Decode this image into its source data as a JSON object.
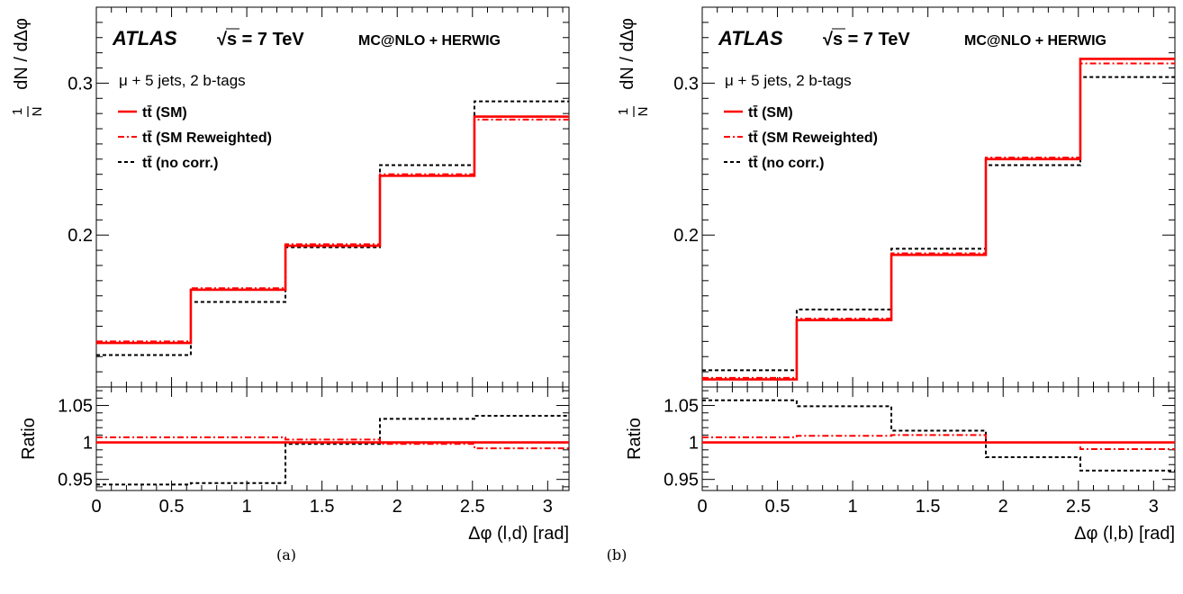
{
  "chart_data": [
    {
      "type": "step",
      "caption": "(a)",
      "experiment": "ATLAS",
      "energy": "√s = 7 TeV",
      "generator": "MC@NLO + HERWIG",
      "selection": "μ + 5 jets, 2 b-tags",
      "ylabel_num": "1",
      "ylabel_den": "N",
      "ylabel": "dN / dΔφ",
      "xlabel": "Δφ (l,d) [rad]",
      "ratio_ylabel": "Ratio",
      "xlim": [
        0,
        3.1416
      ],
      "ylim": [
        0.1,
        0.35
      ],
      "ratio_ylim": [
        0.935,
        1.075
      ],
      "x_ticks": [
        "0",
        "0.5",
        "1",
        "1.5",
        "2",
        "2.5",
        "3"
      ],
      "y_ticks": [
        "0.2",
        "0.3"
      ],
      "ratio_y_ticks": [
        "0.95",
        "1",
        "1.05"
      ],
      "bin_edges": [
        0,
        0.628,
        1.257,
        1.885,
        2.513,
        3.1416
      ],
      "series": [
        {
          "name": "tt̄ (SM)",
          "style": "solid",
          "color": "#ff0000",
          "values": [
            0.129,
            0.164,
            0.193,
            0.239,
            0.278
          ],
          "ratio": [
            1.0,
            1.0,
            1.0,
            1.0,
            1.0
          ]
        },
        {
          "name": "tt̄ (SM Reweighted)",
          "style": "dashdot",
          "color": "#ff0000",
          "values": [
            0.13,
            0.165,
            0.194,
            0.24,
            0.276
          ],
          "ratio": [
            1.007,
            1.007,
            1.004,
            0.998,
            0.992
          ]
        },
        {
          "name": "tt̄ (no corr.)",
          "style": "dotted",
          "color": "#000000",
          "values": [
            0.121,
            0.156,
            0.192,
            0.246,
            0.288
          ],
          "ratio": [
            0.943,
            0.945,
            0.998,
            1.032,
            1.036
          ]
        }
      ]
    },
    {
      "type": "step",
      "caption": "(b)",
      "experiment": "ATLAS",
      "energy": "√s = 7 TeV",
      "generator": "MC@NLO + HERWIG",
      "selection": "μ + 5 jets, 2 b-tags",
      "ylabel_num": "1",
      "ylabel_den": "N",
      "ylabel": "dN / dΔφ",
      "xlabel": "Δφ (l,b) [rad]",
      "ratio_ylabel": "Ratio",
      "xlim": [
        0,
        3.1416
      ],
      "ylim": [
        0.1,
        0.35
      ],
      "ratio_ylim": [
        0.935,
        1.075
      ],
      "x_ticks": [
        "0",
        "0.5",
        "1",
        "1.5",
        "2",
        "2.5",
        "3"
      ],
      "y_ticks": [
        "0.2",
        "0.3"
      ],
      "ratio_y_ticks": [
        "0.95",
        "1",
        "1.05"
      ],
      "bin_edges": [
        0,
        0.628,
        1.257,
        1.885,
        2.513,
        3.1416
      ],
      "series": [
        {
          "name": "tt̄ (SM)",
          "style": "solid",
          "color": "#ff0000",
          "values": [
            0.105,
            0.144,
            0.187,
            0.25,
            0.316
          ],
          "ratio": [
            1.0,
            1.0,
            1.0,
            1.0,
            1.0
          ]
        },
        {
          "name": "tt̄ (SM Reweighted)",
          "style": "dashdot",
          "color": "#ff0000",
          "values": [
            0.106,
            0.145,
            0.188,
            0.251,
            0.313
          ],
          "ratio": [
            1.007,
            1.009,
            1.01,
            1.0,
            0.991
          ]
        },
        {
          "name": "tt̄ (no corr.)",
          "style": "dotted",
          "color": "#000000",
          "values": [
            0.111,
            0.151,
            0.191,
            0.246,
            0.304
          ],
          "ratio": [
            1.057,
            1.049,
            1.016,
            0.98,
            0.962
          ]
        }
      ]
    }
  ]
}
